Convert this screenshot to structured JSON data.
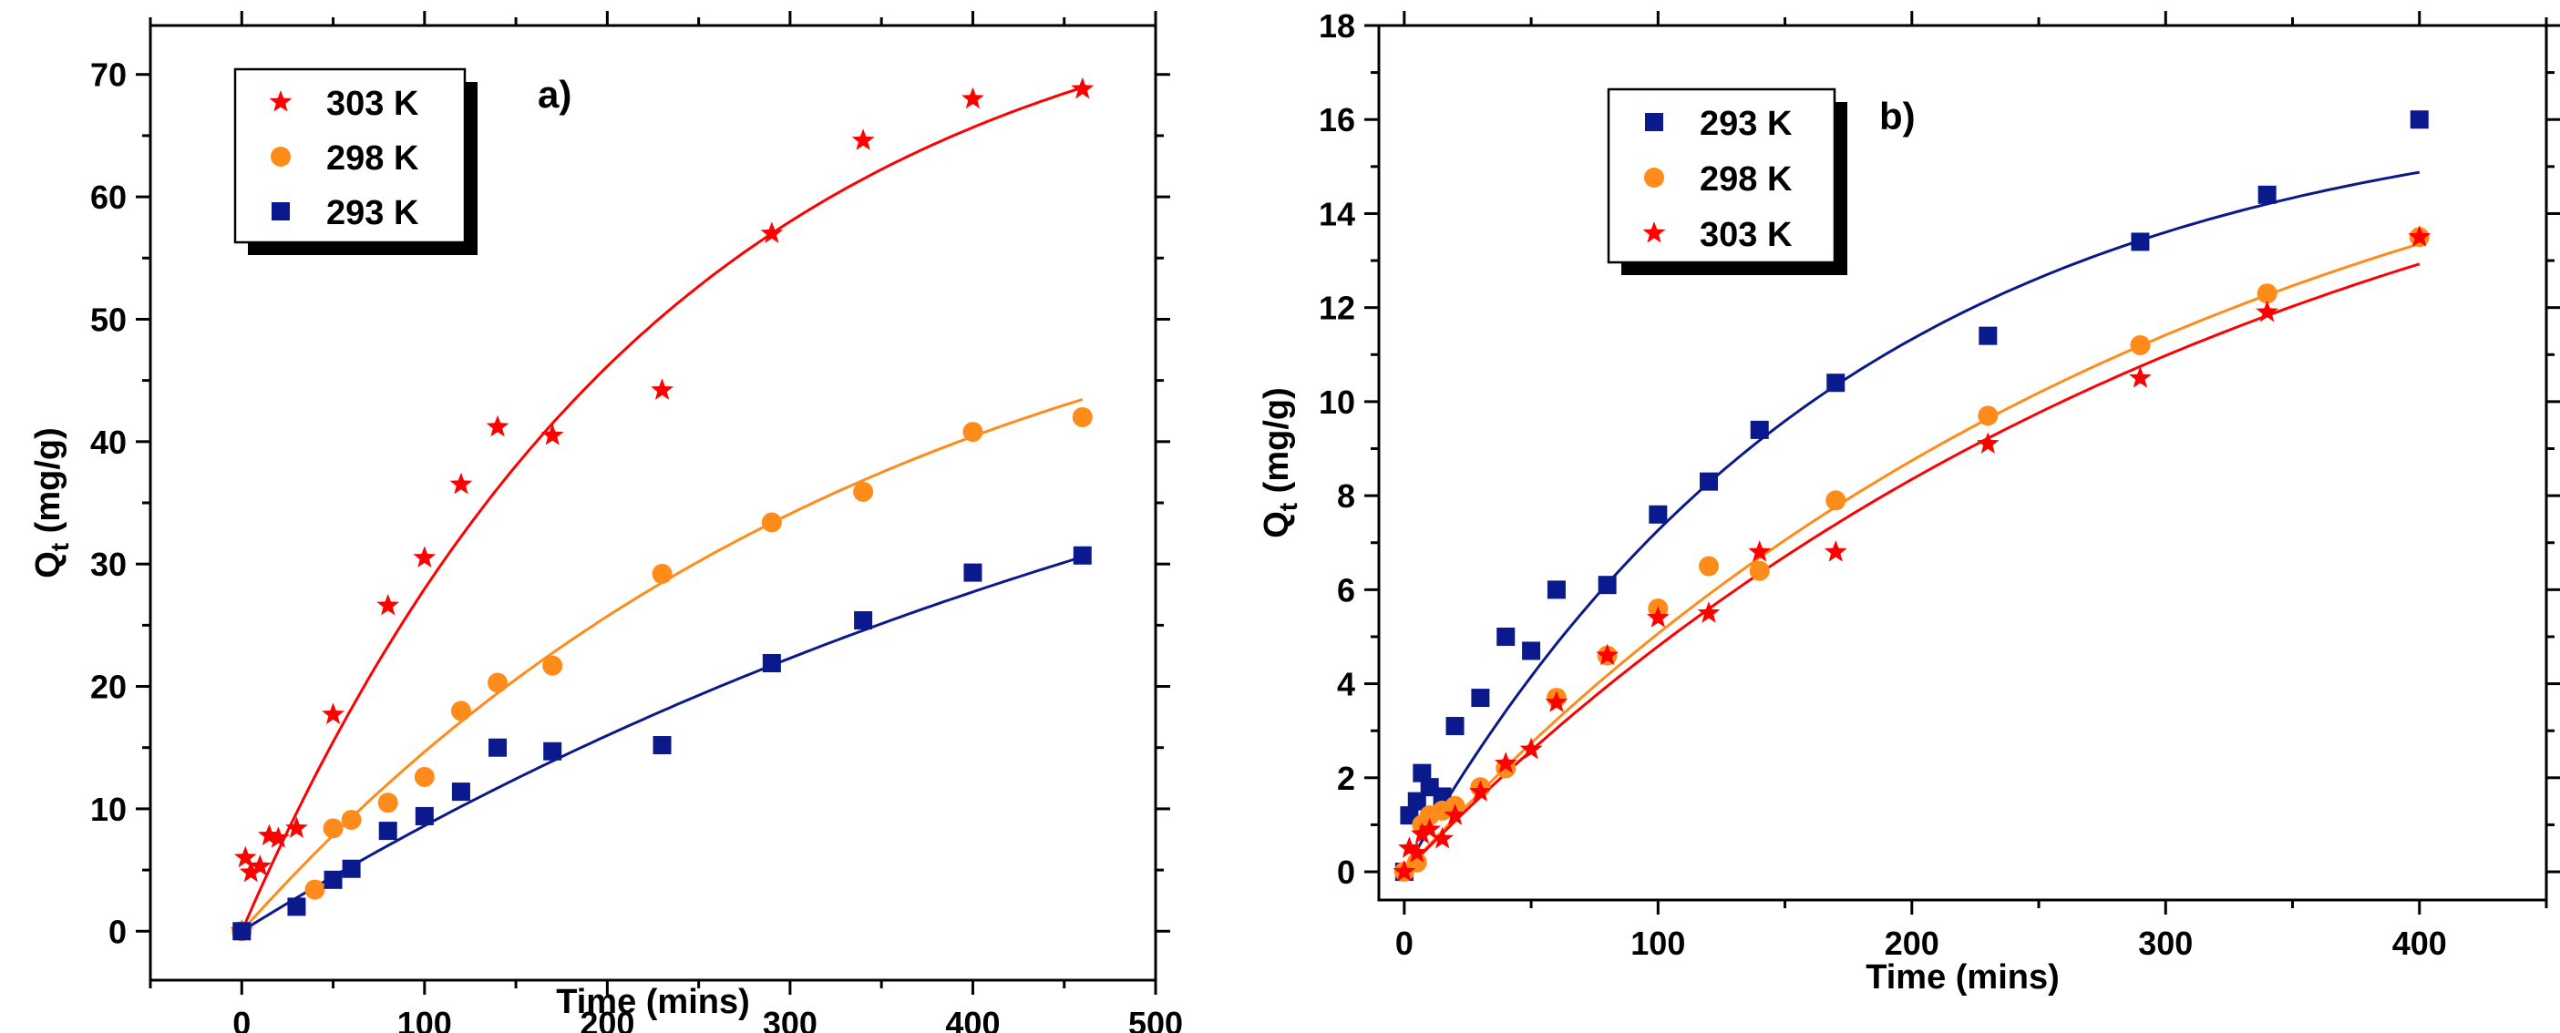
{
  "chart_data": [
    {
      "type": "scatter",
      "panel_label": "a)",
      "xlabel": "Time (mins)",
      "ylabel": {
        "main": "Q",
        "sub": "t",
        "units": " (mg/g)"
      },
      "xlim": [
        -50,
        500
      ],
      "ylim": [
        -4,
        74
      ],
      "xticks": [
        0,
        100,
        200,
        300,
        400,
        500
      ],
      "xtick_labels": [
        "0",
        "100",
        "200",
        "300",
        "400",
        "500"
      ],
      "yticks": [
        0,
        10,
        20,
        30,
        40,
        50,
        60,
        70
      ],
      "ytick_labels": [
        "0",
        "10",
        "20",
        "30",
        "40",
        "50",
        "60",
        "70"
      ],
      "grid": false,
      "legend_location": "top-left",
      "series": [
        {
          "name": "303 K",
          "marker": "star",
          "color": "#ff0000",
          "x": [
            0,
            2,
            5,
            10,
            15,
            20,
            30,
            50,
            80,
            100,
            120,
            140,
            170,
            230,
            290,
            340,
            400,
            460
          ],
          "y": [
            0,
            6,
            4.8,
            5.3,
            7.8,
            7.6,
            8.4,
            17.7,
            26.6,
            30.5,
            36.5,
            41.2,
            40.5,
            44.2,
            57,
            64.6,
            68,
            68.8
          ],
          "fit": {
            "qe": 80,
            "k": 0.0043,
            "x_max": 460
          }
        },
        {
          "name": "298 K",
          "marker": "circle",
          "color": "#ff8c1a",
          "x": [
            0,
            40,
            50,
            60,
            80,
            100,
            120,
            140,
            170,
            230,
            290,
            340,
            400,
            460
          ],
          "y": [
            0,
            3.4,
            8.4,
            9.1,
            10.5,
            12.6,
            18,
            20.3,
            21.7,
            29.2,
            33.4,
            35.9,
            40.8,
            42
          ],
          "fit": {
            "qe": 60,
            "k": 0.0028,
            "x_max": 460
          }
        },
        {
          "name": "293 K",
          "marker": "square",
          "color": "#0a1a8c",
          "x": [
            0,
            30,
            50,
            60,
            80,
            100,
            120,
            140,
            170,
            230,
            290,
            340,
            400,
            460
          ],
          "y": [
            0,
            2,
            4.2,
            5.1,
            8.2,
            9.4,
            11.4,
            15,
            14.7,
            15.2,
            21.9,
            25.4,
            29.3,
            30.7
          ],
          "fit": {
            "qe": 60,
            "k": 0.00155,
            "x_max": 460
          }
        }
      ]
    },
    {
      "type": "scatter",
      "panel_label": "b)",
      "xlabel": "Time (mins)",
      "ylabel": {
        "main": "Q",
        "sub": "t",
        "units": " (mg/g)"
      },
      "xlim": [
        -10,
        450
      ],
      "ylim": [
        -0.6,
        18
      ],
      "xticks": [
        0,
        100,
        200,
        300,
        400
      ],
      "xtick_labels": [
        "0",
        "100",
        "200",
        "300",
        "400"
      ],
      "yticks": [
        0,
        2,
        4,
        6,
        8,
        10,
        12,
        14,
        16,
        18
      ],
      "ytick_labels": [
        "0",
        "2",
        "4",
        "6",
        "8",
        "10",
        "12",
        "14",
        "16",
        "18"
      ],
      "grid": false,
      "legend_location": "top-left",
      "series": [
        {
          "name": "293 K",
          "marker": "square",
          "color": "#0a1a8c",
          "x": [
            0,
            2,
            5,
            7,
            10,
            15,
            20,
            30,
            40,
            50,
            60,
            80,
            100,
            120,
            140,
            170,
            230,
            290,
            340,
            400
          ],
          "y": [
            0,
            1.2,
            1.5,
            2.1,
            1.8,
            1.6,
            3.1,
            3.7,
            5,
            4.7,
            6,
            6.1,
            7.6,
            8.3,
            9.4,
            10.4,
            11.4,
            13.4,
            14.4,
            16
          ],
          "fit": {
            "qe": 16.5,
            "k": 0.0058,
            "x_max": 400
          }
        },
        {
          "name": "298 K",
          "marker": "circle",
          "color": "#ff8c1a",
          "x": [
            0,
            5,
            7,
            10,
            15,
            20,
            30,
            40,
            60,
            80,
            100,
            120,
            140,
            170,
            230,
            290,
            340,
            400
          ],
          "y": [
            0,
            0.2,
            1,
            1.2,
            1.3,
            1.4,
            1.8,
            2.2,
            3.7,
            4.6,
            5.6,
            6.5,
            6.4,
            7.9,
            9.7,
            11.2,
            12.3,
            13.5
          ],
          "fit": {
            "qe": 18.5,
            "k": 0.0032,
            "x_max": 400
          }
        },
        {
          "name": "303 K",
          "marker": "star",
          "color": "#ff0000",
          "x": [
            0,
            2,
            5,
            7,
            10,
            15,
            20,
            30,
            40,
            50,
            60,
            80,
            100,
            120,
            140,
            170,
            230,
            290,
            340,
            400
          ],
          "y": [
            0,
            0.5,
            0.4,
            0.8,
            0.9,
            0.7,
            1.2,
            1.7,
            2.3,
            2.6,
            3.6,
            4.6,
            5.4,
            5.5,
            6.8,
            6.8,
            9.1,
            10.5,
            11.9,
            13.5
          ],
          "fit": {
            "qe": 18.5,
            "k": 0.003,
            "x_max": 400
          }
        }
      ]
    }
  ]
}
